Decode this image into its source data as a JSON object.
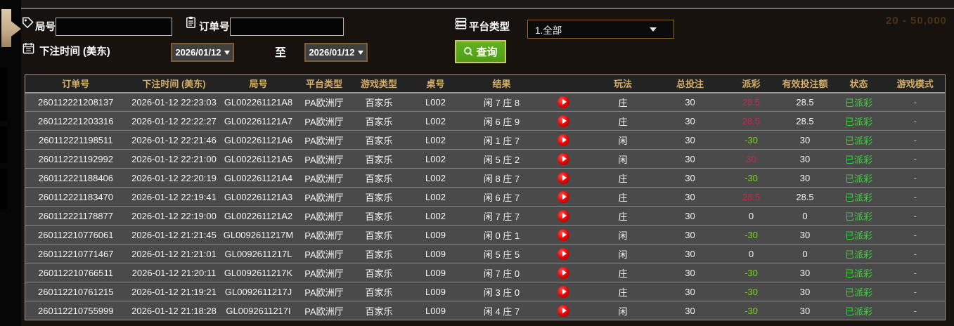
{
  "ghost_text": "20 - 50,000",
  "filters": {
    "round": {
      "label": "局号",
      "value": "",
      "icon": "tag-icon"
    },
    "order": {
      "label": "订单号",
      "value": "",
      "icon": "clipboard-icon"
    },
    "platform": {
      "label": "平台类型",
      "selected": "1.全部",
      "icon": "stack-icon"
    },
    "bet_time": {
      "label": "下注时间 (美东)",
      "icon": "calendar-icon"
    },
    "date_from": "2026/01/12",
    "to_label": "至",
    "date_to": "2026/01/12",
    "search_button": "查询"
  },
  "table": {
    "headers": [
      "订单号",
      "下注时间 (美东)",
      "局号",
      "平台类型",
      "游戏类型",
      "桌号",
      "结果",
      "",
      "玩法",
      "总投注",
      "派彩",
      "有效投注额",
      "状态",
      "游戏模式"
    ],
    "row_keys": [
      "order",
      "time",
      "round",
      "platform",
      "game",
      "table",
      "result",
      "play",
      "bet",
      "total",
      "payout",
      "valid",
      "status",
      "mode"
    ],
    "rows": [
      {
        "order": "260112221208137",
        "time": "2026-01-12 22:23:03",
        "round": "GL002261121A8",
        "platform": "PA欧洲厅",
        "game": "百家乐",
        "table": "L002",
        "result": "闲 7 庄 8",
        "bet": "庄",
        "total": "30",
        "payout": "28.5",
        "payout_class": "win",
        "valid": "28.5",
        "status": "已派彩",
        "mode": "-"
      },
      {
        "order": "260112221203316",
        "time": "2026-01-12 22:22:27",
        "round": "GL002261121A7",
        "platform": "PA欧洲厅",
        "game": "百家乐",
        "table": "L002",
        "result": "闲 6 庄 9",
        "bet": "庄",
        "total": "30",
        "payout": "28.5",
        "payout_class": "win",
        "valid": "28.5",
        "status": "已派彩",
        "mode": "-"
      },
      {
        "order": "260112221198511",
        "time": "2026-01-12 22:21:46",
        "round": "GL002261121A6",
        "platform": "PA欧洲厅",
        "game": "百家乐",
        "table": "L002",
        "result": "闲 1 庄 7",
        "bet": "闲",
        "total": "30",
        "payout": "-30",
        "payout_class": "loss",
        "valid": "30",
        "status": "已派彩",
        "mode": "-"
      },
      {
        "order": "260112221192992",
        "time": "2026-01-12 22:21:00",
        "round": "GL002261121A5",
        "platform": "PA欧洲厅",
        "game": "百家乐",
        "table": "L002",
        "result": "闲 5 庄 2",
        "bet": "闲",
        "total": "30",
        "payout": "30",
        "payout_class": "win",
        "valid": "30",
        "status": "已派彩",
        "mode": "-"
      },
      {
        "order": "260112221188406",
        "time": "2026-01-12 22:20:19",
        "round": "GL002261121A4",
        "platform": "PA欧洲厅",
        "game": "百家乐",
        "table": "L002",
        "result": "闲 8 庄 7",
        "bet": "庄",
        "total": "30",
        "payout": "-30",
        "payout_class": "loss",
        "valid": "30",
        "status": "已派彩",
        "mode": "-"
      },
      {
        "order": "260112221183470",
        "time": "2026-01-12 22:19:41",
        "round": "GL002261121A3",
        "platform": "PA欧洲厅",
        "game": "百家乐",
        "table": "L002",
        "result": "闲 6 庄 7",
        "bet": "庄",
        "total": "30",
        "payout": "28.5",
        "payout_class": "win",
        "valid": "28.5",
        "status": "已派彩",
        "mode": "-"
      },
      {
        "order": "260112221178877",
        "time": "2026-01-12 22:19:00",
        "round": "GL002261121A2",
        "platform": "PA欧洲厅",
        "game": "百家乐",
        "table": "L002",
        "result": "闲 7 庄 7",
        "bet": "庄",
        "total": "30",
        "payout": "0",
        "payout_class": "zero",
        "valid": "0",
        "status": "已派彩",
        "mode": "-"
      },
      {
        "order": "260112210776061",
        "time": "2026-01-12 21:21:45",
        "round": "GL0092611217M",
        "platform": "PA欧洲厅",
        "game": "百家乐",
        "table": "L009",
        "result": "闲 0 庄 1",
        "bet": "闲",
        "total": "30",
        "payout": "-30",
        "payout_class": "loss",
        "valid": "30",
        "status": "已派彩",
        "mode": "-"
      },
      {
        "order": "260112210771467",
        "time": "2026-01-12 21:21:01",
        "round": "GL0092611217L",
        "platform": "PA欧洲厅",
        "game": "百家乐",
        "table": "L009",
        "result": "闲 5 庄 5",
        "bet": "闲",
        "total": "30",
        "payout": "0",
        "payout_class": "zero",
        "valid": "0",
        "status": "已派彩",
        "mode": "-"
      },
      {
        "order": "260112210766511",
        "time": "2026-01-12 21:20:11",
        "round": "GL0092611217K",
        "platform": "PA欧洲厅",
        "game": "百家乐",
        "table": "L009",
        "result": "闲 7 庄 0",
        "bet": "庄",
        "total": "30",
        "payout": "-30",
        "payout_class": "loss",
        "valid": "30",
        "status": "已派彩",
        "mode": "-"
      },
      {
        "order": "260112210761215",
        "time": "2026-01-12 21:19:21",
        "round": "GL0092611217J",
        "platform": "PA欧洲厅",
        "game": "百家乐",
        "table": "L009",
        "result": "闲 3 庄 0",
        "bet": "庄",
        "total": "30",
        "payout": "-30",
        "payout_class": "loss",
        "valid": "30",
        "status": "已派彩",
        "mode": "-"
      },
      {
        "order": "260112210755999",
        "time": "2026-01-12 21:18:28",
        "round": "GL0092611217I",
        "platform": "PA欧洲厅",
        "game": "百家乐",
        "table": "L009",
        "result": "闲 4 庄 7",
        "bet": "闲",
        "total": "30",
        "payout": "-30",
        "payout_class": "loss",
        "valid": "30",
        "status": "已派彩",
        "mode": "-"
      }
    ]
  },
  "colors": {
    "header_text": "#d4ad67",
    "payout_win": "#c32a4c",
    "payout_loss": "#7cd41c",
    "status_paid": "#3ecf3e",
    "search_button_bg": "#55a71c",
    "date_border": "#7e5e2e",
    "row_bg": "#4a4a4a"
  }
}
